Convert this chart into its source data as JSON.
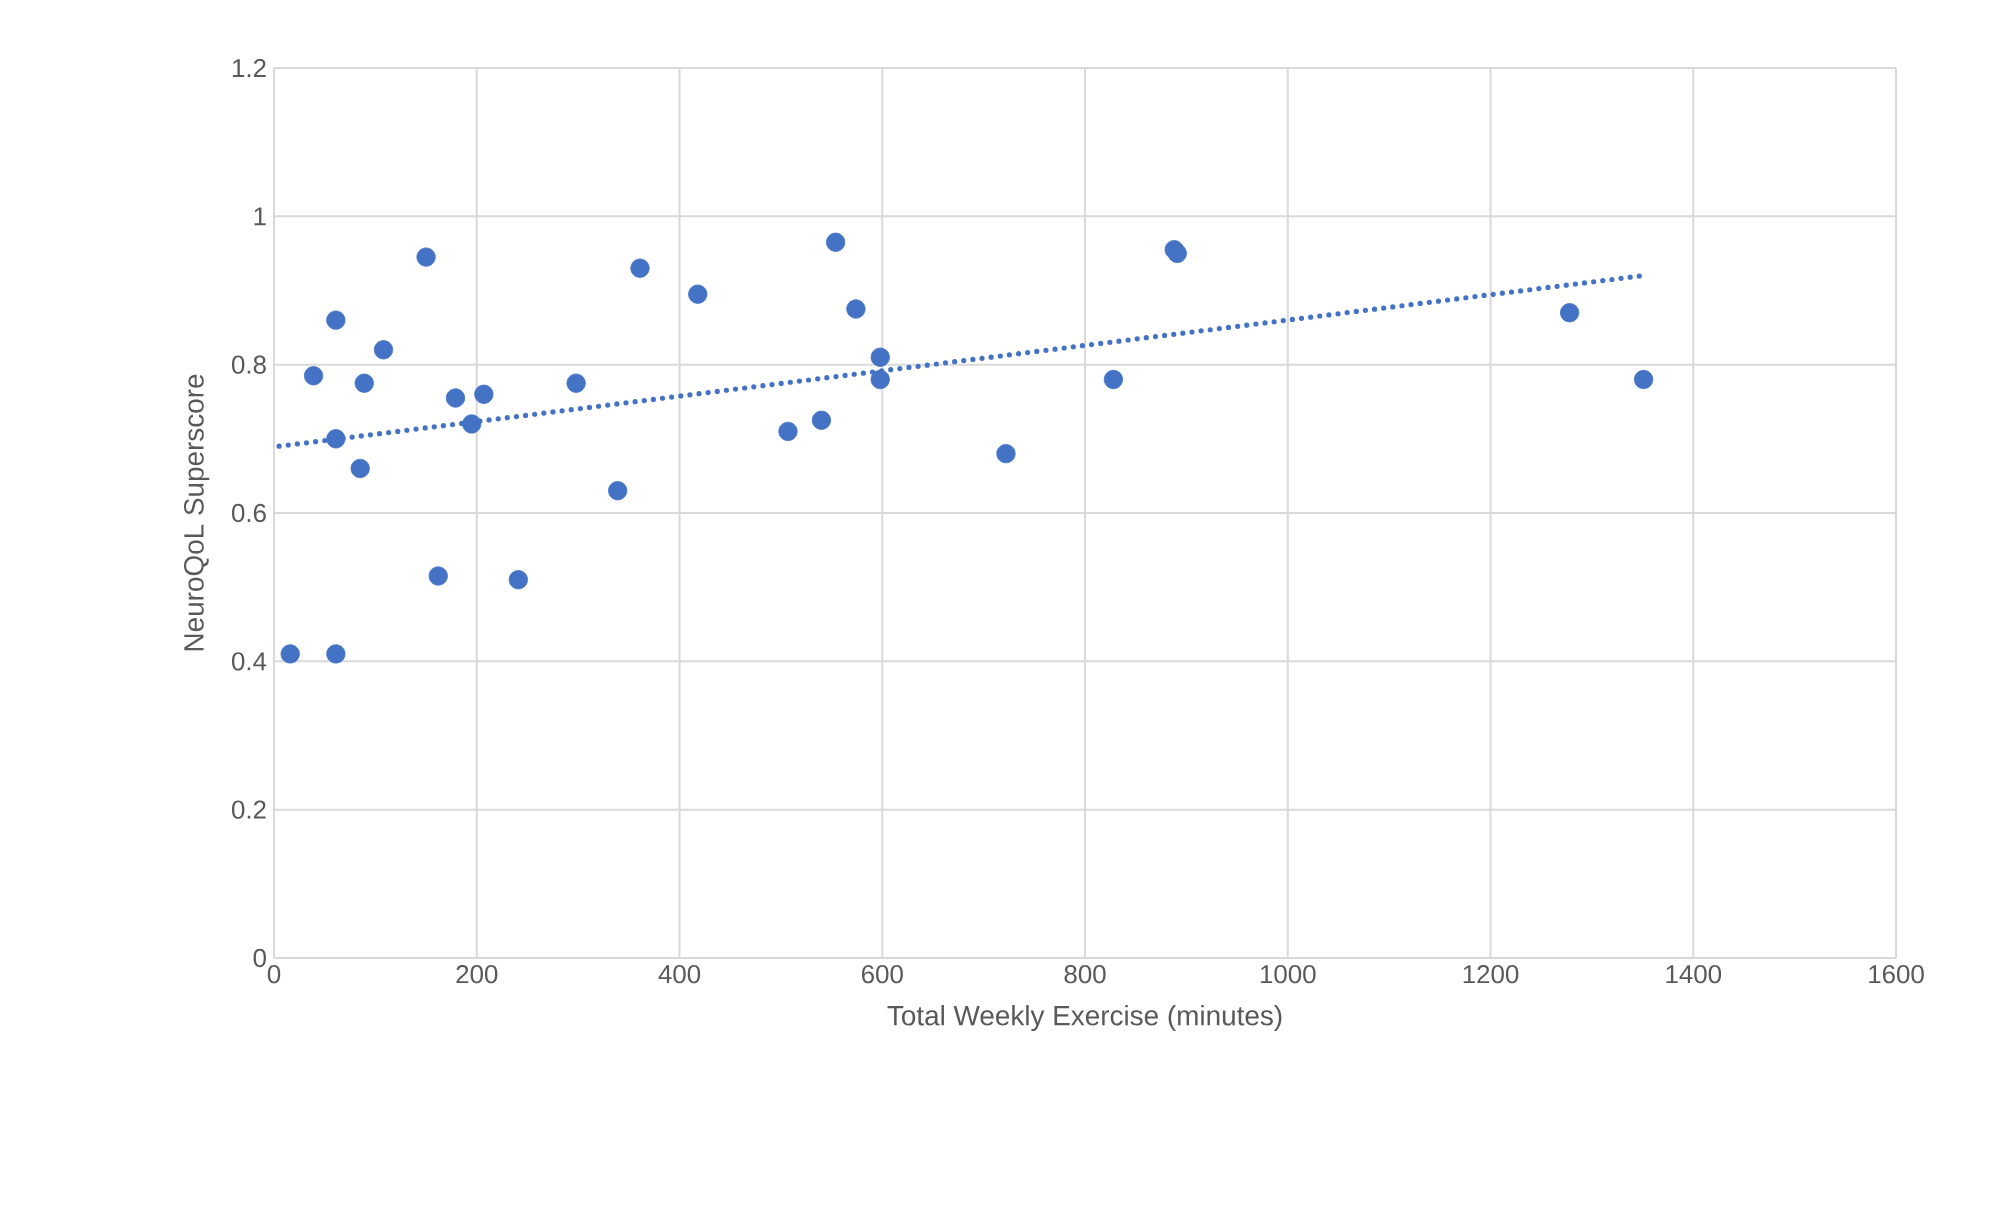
{
  "chart_data": {
    "type": "scatter",
    "xlabel": "Total Weekly Exercise (minutes)",
    "ylabel": "NeuroQoL Superscore",
    "series": [
      {
        "type": "scatter",
        "color": "#4472c4",
        "marker": "circle",
        "x": [
          16,
          39,
          61,
          61,
          61,
          85,
          89,
          108,
          150,
          162,
          179,
          195,
          207,
          241,
          298,
          339,
          361,
          418,
          507,
          540,
          554,
          574,
          598,
          598,
          722,
          828,
          888,
          891,
          1278,
          1351
        ],
        "values": [
          0.41,
          0.785,
          0.86,
          0.7,
          0.41,
          0.66,
          0.775,
          0.82,
          0.945,
          0.515,
          0.755,
          0.72,
          0.76,
          0.51,
          0.775,
          0.63,
          0.93,
          0.895,
          0.71,
          0.725,
          0.965,
          0.875,
          0.81,
          0.78,
          0.68,
          0.78,
          0.955,
          0.95,
          0.87,
          0.78
        ]
      },
      {
        "type": "line",
        "color": "#4472c4",
        "line_style": "dotted",
        "marker": "none",
        "x": [
          5,
          1350
        ],
        "values": [
          0.69,
          0.92
        ]
      }
    ],
    "xlim": [
      0,
      1600
    ],
    "xticks": [
      0,
      200,
      400,
      600,
      800,
      1000,
      1200,
      1400,
      1600
    ],
    "ylim": [
      0,
      1.2
    ],
    "yticks": [
      0,
      0.2,
      0.4,
      0.6,
      0.8,
      1,
      1.2
    ],
    "grid": true
  }
}
